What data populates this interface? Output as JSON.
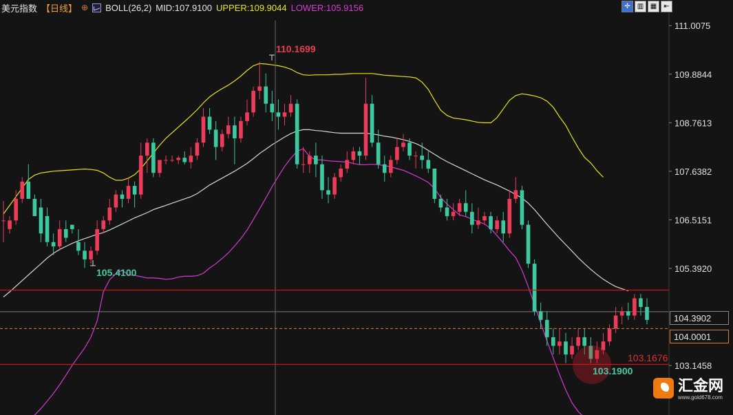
{
  "header": {
    "symbol": "美元指数",
    "period": "【日线】",
    "settings_icon": "gear-icon",
    "indicator_icon": "indicator-icon",
    "boll": "BOLL(26,2)",
    "mid": "MID:107.9100",
    "upper": "UPPER:109.9044",
    "lower": "LOWER:105.9156"
  },
  "toolbar": {
    "buttons": [
      {
        "name": "crosshair-button",
        "glyph": "✛",
        "active": true
      },
      {
        "name": "chart-mode-button-1",
        "glyph": "▥",
        "active": false
      },
      {
        "name": "chart-mode-button-2",
        "glyph": "▦",
        "active": false
      },
      {
        "name": "chart-mode-button-3",
        "glyph": "⇤",
        "active": false
      }
    ]
  },
  "price_tags": {
    "last": "104.3902",
    "crosshair": "104.0001"
  },
  "annotations": {
    "high": "110.1699",
    "low_left": "105.4100",
    "low_right": "103.1900",
    "ref_red": "103.1676"
  },
  "watermark": {
    "name": "汇金网",
    "url": "www.gold678.com"
  },
  "colors": {
    "background": "#141414",
    "up": "#ec3c5a",
    "down": "#3ec8a0",
    "mid": "#d8d8d8",
    "upper": "#e6e619",
    "lower": "#d63ad6",
    "hline": "#c8161e",
    "crosshair_price": "#d8823c"
  },
  "chart_data": {
    "type": "candlestick",
    "title": "美元指数【日线】",
    "ylim": [
      102.0,
      111.6
    ],
    "y_ticks": [
      "111.0075",
      "109.8844",
      "108.7613",
      "107.6382",
      "106.5151",
      "105.3920",
      "103.1458"
    ],
    "horizontal_lines": [
      104.89,
      103.17
    ],
    "crosshair_price": 104.0001,
    "last_price": 104.3902,
    "candles": [
      [
        106.5,
        106.95,
        106.5,
        106.0
      ],
      [
        106.3,
        106.6,
        106.5,
        106.2
      ],
      [
        106.5,
        107.2,
        107.0,
        106.4
      ],
      [
        107.0,
        107.5,
        107.4,
        106.9
      ],
      [
        107.4,
        107.4,
        107.0,
        107.8
      ],
      [
        107.0,
        107.1,
        106.6,
        106.9
      ],
      [
        106.8,
        107.0,
        106.2,
        106.0
      ],
      [
        106.6,
        106.8,
        106.0,
        105.9
      ],
      [
        106.0,
        106.2,
        105.9,
        105.7
      ],
      [
        105.9,
        106.5,
        106.3,
        105.8
      ],
      [
        106.3,
        106.5,
        106.1,
        106.0
      ],
      [
        106.4,
        106.4,
        106.3,
        106.2
      ],
      [
        106.0,
        106.3,
        105.8,
        105.7
      ],
      [
        105.8,
        106.0,
        105.6,
        105.4
      ],
      [
        105.6,
        105.9,
        105.8,
        105.5
      ],
      [
        105.8,
        106.5,
        106.3,
        105.7
      ],
      [
        106.3,
        106.6,
        106.5,
        106.2
      ],
      [
        106.5,
        107.0,
        106.8,
        106.4
      ],
      [
        106.8,
        107.2,
        107.1,
        106.7
      ],
      [
        107.1,
        107.2,
        107.0,
        106.8
      ],
      [
        107.0,
        107.5,
        107.3,
        106.9
      ],
      [
        107.3,
        107.4,
        107.1,
        106.8
      ],
      [
        107.1,
        108.3,
        108.0,
        107.0
      ],
      [
        108.0,
        108.4,
        108.3,
        107.6
      ],
      [
        108.3,
        108.4,
        107.6,
        107.5
      ],
      [
        107.6,
        107.9,
        107.9,
        107.5
      ],
      [
        107.9,
        108.0,
        107.9,
        107.8
      ],
      [
        107.9,
        108.0,
        107.9,
        107.85
      ],
      [
        107.9,
        108.0,
        107.95,
        107.8
      ],
      [
        107.95,
        108.1,
        107.85,
        107.8
      ],
      [
        107.85,
        108.2,
        108.0,
        107.7
      ],
      [
        108.0,
        108.4,
        108.3,
        107.9
      ],
      [
        108.3,
        109.1,
        108.9,
        108.2
      ],
      [
        108.9,
        109.1,
        108.6,
        108.5
      ],
      [
        108.6,
        108.8,
        108.2,
        107.9
      ],
      [
        108.2,
        108.6,
        108.5,
        108.1
      ],
      [
        108.5,
        108.9,
        108.7,
        108.4
      ],
      [
        108.7,
        108.9,
        108.4,
        107.8
      ],
      [
        108.4,
        108.9,
        108.8,
        108.3
      ],
      [
        108.8,
        109.3,
        109.0,
        108.7
      ],
      [
        109.0,
        109.6,
        109.5,
        108.9
      ],
      [
        109.5,
        110.17,
        109.6,
        109.3
      ],
      [
        109.6,
        109.9,
        109.2,
        109.0
      ],
      [
        109.2,
        109.5,
        109.0,
        108.8
      ],
      [
        109.0,
        109.3,
        108.9,
        108.6
      ],
      [
        108.9,
        109.2,
        109.0,
        108.7
      ],
      [
        109.0,
        109.4,
        109.2,
        108.9
      ],
      [
        109.2,
        109.3,
        107.8,
        107.7
      ],
      [
        107.8,
        108.2,
        107.8,
        107.6
      ],
      [
        107.8,
        108.1,
        108.0,
        107.6
      ],
      [
        108.0,
        108.3,
        107.8,
        107.5
      ],
      [
        107.8,
        108.0,
        107.2,
        107.0
      ],
      [
        107.2,
        107.5,
        107.1,
        106.9
      ],
      [
        107.1,
        107.6,
        107.5,
        107.0
      ],
      [
        107.5,
        107.8,
        107.7,
        107.4
      ],
      [
        107.7,
        108.1,
        107.9,
        107.6
      ],
      [
        107.9,
        108.2,
        108.1,
        107.8
      ],
      [
        108.1,
        108.2,
        108.0,
        107.8
      ],
      [
        108.0,
        109.8,
        109.2,
        107.9
      ],
      [
        109.2,
        109.4,
        108.3,
        108.2
      ],
      [
        108.3,
        108.6,
        107.8,
        107.7
      ],
      [
        107.8,
        108.0,
        107.6,
        107.4
      ],
      [
        107.6,
        108.0,
        107.9,
        107.5
      ],
      [
        107.9,
        108.4,
        108.2,
        107.8
      ],
      [
        108.2,
        108.5,
        108.3,
        108.1
      ],
      [
        108.3,
        108.4,
        108.0,
        107.9
      ],
      [
        108.0,
        108.1,
        108.0,
        107.7
      ],
      [
        108.0,
        108.3,
        107.9,
        107.7
      ],
      [
        107.9,
        108.1,
        107.7,
        107.6
      ],
      [
        107.7,
        107.7,
        107.0,
        106.9
      ],
      [
        107.0,
        107.1,
        106.8,
        106.7
      ],
      [
        106.8,
        107.0,
        106.6,
        106.5
      ],
      [
        106.6,
        106.9,
        106.7,
        106.5
      ],
      [
        106.7,
        107.0,
        106.9,
        106.6
      ],
      [
        106.9,
        107.2,
        106.7,
        106.6
      ],
      [
        106.7,
        106.9,
        106.4,
        106.2
      ],
      [
        106.4,
        106.8,
        106.5,
        106.3
      ],
      [
        106.5,
        106.7,
        106.6,
        106.4
      ],
      [
        106.6,
        106.7,
        106.3,
        106.2
      ],
      [
        106.3,
        106.6,
        106.5,
        106.2
      ],
      [
        106.5,
        106.7,
        106.2,
        106.0
      ],
      [
        106.2,
        107.2,
        107.0,
        106.1
      ],
      [
        107.0,
        107.5,
        107.2,
        106.9
      ],
      [
        107.2,
        107.3,
        106.4,
        106.3
      ],
      [
        106.4,
        106.5,
        105.5,
        105.4
      ],
      [
        105.5,
        105.6,
        104.4,
        104.3
      ],
      [
        104.4,
        104.6,
        104.2,
        104.0
      ],
      [
        104.2,
        104.4,
        103.8,
        103.6
      ],
      [
        103.8,
        104.0,
        103.6,
        103.4
      ],
      [
        103.6,
        104.0,
        103.7,
        103.4
      ],
      [
        103.7,
        103.9,
        103.4,
        103.2
      ],
      [
        103.4,
        103.8,
        103.6,
        103.3
      ],
      [
        103.6,
        104.0,
        103.8,
        103.5
      ],
      [
        103.8,
        104.0,
        103.6,
        103.4
      ],
      [
        103.6,
        103.8,
        103.3,
        103.2
      ],
      [
        103.3,
        103.7,
        103.5,
        103.2
      ],
      [
        103.5,
        103.9,
        103.7,
        103.4
      ],
      [
        103.7,
        104.1,
        104.0,
        103.6
      ],
      [
        104.0,
        104.5,
        104.3,
        103.9
      ],
      [
        104.3,
        104.5,
        104.4,
        104.1
      ],
      [
        104.4,
        104.6,
        104.3,
        104.2
      ],
      [
        104.3,
        104.8,
        104.7,
        104.2
      ],
      [
        104.7,
        104.8,
        104.5,
        104.3
      ],
      [
        104.5,
        104.7,
        104.2,
        104.1
      ]
    ],
    "mid_band": [
      104.73,
      104.85,
      104.98,
      105.11,
      105.24,
      105.37,
      105.5,
      105.63,
      105.74,
      105.83,
      105.9,
      105.97,
      106.03,
      106.08,
      106.13,
      106.18,
      106.22,
      106.28,
      106.35,
      106.42,
      106.49,
      106.56,
      106.62,
      106.68,
      106.75,
      106.8,
      106.85,
      106.9,
      106.95,
      107.0,
      107.05,
      107.12,
      107.22,
      107.32,
      107.4,
      107.48,
      107.56,
      107.64,
      107.73,
      107.82,
      107.93,
      108.05,
      108.15,
      108.25,
      108.34,
      108.43,
      108.51,
      108.57,
      108.6,
      108.6,
      108.58,
      108.57,
      108.55,
      108.53,
      108.52,
      108.52,
      108.52,
      108.52,
      108.52,
      108.5,
      108.48,
      108.45,
      108.43,
      108.4,
      108.37,
      108.33,
      108.28,
      108.21,
      108.12,
      108.03,
      107.94,
      107.86,
      107.79,
      107.72,
      107.65,
      107.58,
      107.51,
      107.44,
      107.38,
      107.32,
      107.25,
      107.18,
      107.1,
      107.02,
      106.9,
      106.75,
      106.58,
      106.41,
      106.25,
      106.09,
      105.94,
      105.79,
      105.64,
      105.5,
      105.37,
      105.25,
      105.14,
      105.05,
      104.97,
      104.92,
      104.87
    ],
    "upper_band": [
      106.65,
      106.85,
      107.05,
      107.25,
      107.45,
      107.55,
      107.6,
      107.62,
      107.64,
      107.65,
      107.66,
      107.67,
      107.68,
      107.69,
      107.68,
      107.66,
      107.6,
      107.5,
      107.43,
      107.43,
      107.48,
      107.56,
      107.7,
      107.88,
      108.06,
      108.24,
      108.4,
      108.53,
      108.66,
      108.79,
      108.92,
      109.06,
      109.22,
      109.36,
      109.46,
      109.55,
      109.63,
      109.73,
      109.84,
      109.97,
      110.08,
      110.13,
      110.12,
      110.1,
      110.08,
      110.05,
      110.0,
      109.92,
      109.87,
      109.86,
      109.87,
      109.87,
      109.87,
      109.88,
      109.88,
      109.89,
      109.9,
      109.9,
      109.9,
      109.9,
      109.88,
      109.86,
      109.85,
      109.84,
      109.83,
      109.82,
      109.8,
      109.7,
      109.53,
      109.28,
      109.05,
      108.93,
      108.87,
      108.85,
      108.83,
      108.8,
      108.77,
      108.76,
      108.76,
      108.88,
      109.08,
      109.28,
      109.39,
      109.43,
      109.41,
      109.38,
      109.34,
      109.26,
      109.12,
      108.9,
      108.7,
      108.43,
      108.18,
      107.96,
      107.83,
      107.65,
      107.5
    ],
    "lower_band": [
      101.7,
      101.77,
      101.83,
      101.9,
      101.93,
      102.0,
      102.15,
      102.32,
      102.5,
      102.7,
      102.92,
      103.15,
      103.35,
      103.55,
      103.8,
      104.18,
      104.85,
      105.13,
      105.27,
      105.35,
      105.24,
      105.23,
      105.2,
      105.17,
      105.17,
      105.16,
      105.14,
      105.15,
      105.19,
      105.21,
      105.21,
      105.22,
      105.28,
      105.4,
      105.5,
      105.62,
      105.75,
      105.91,
      106.08,
      106.28,
      106.52,
      106.77,
      107.02,
      107.28,
      107.52,
      107.75,
      107.94,
      108.1,
      108.16,
      107.98,
      107.9,
      107.9,
      107.88,
      107.87,
      107.86,
      107.85,
      107.82,
      107.79,
      107.79,
      107.8,
      107.79,
      107.77,
      107.74,
      107.7,
      107.66,
      107.6,
      107.53,
      107.46,
      107.38,
      107.24,
      107.03,
      106.88,
      106.75,
      106.63,
      106.59,
      106.53,
      106.47,
      106.42,
      106.31,
      106.15,
      105.98,
      105.8,
      105.64,
      105.35,
      104.97,
      104.55,
      104.12,
      103.71,
      103.32,
      102.94,
      102.58,
      102.28,
      102.08,
      101.94,
      101.84,
      101.76,
      101.74
    ]
  }
}
